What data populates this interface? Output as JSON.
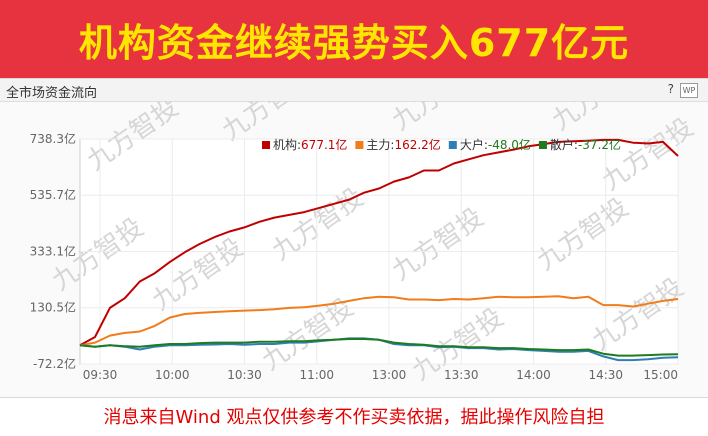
{
  "banner": {
    "title": "机构资金继续强势买入677亿元"
  },
  "panel": {
    "title": "全市场资金流向",
    "help_icon": "?",
    "wp_icon": "WP"
  },
  "watermark": "九方智投",
  "footer": {
    "disclaimer": "消息来自Wind 观点仅供参考不作买卖依据，据此操作风险自担"
  },
  "chart_data": {
    "type": "line",
    "y_ticks": [
      "738.3亿",
      "535.7亿",
      "333.1亿",
      "130.5亿",
      "-72.2亿"
    ],
    "y_tick_values": [
      738.3,
      535.7,
      333.1,
      130.5,
      -72.2
    ],
    "ylim": [
      -72.2,
      738.3
    ],
    "x_ticks": [
      "09:30",
      "10:00",
      "10:30",
      "11:00",
      "13:00",
      "13:30",
      "14:00",
      "14:30",
      "15:00"
    ],
    "grid": true,
    "legend_position": "top-right",
    "series": [
      {
        "name": "机构",
        "legend_value": "677.1亿",
        "color": "#c00000",
        "values": [
          -5,
          25,
          130,
          165,
          225,
          255,
          295,
          330,
          360,
          385,
          405,
          420,
          440,
          455,
          465,
          475,
          490,
          505,
          520,
          545,
          560,
          585,
          600,
          625,
          625,
          650,
          665,
          680,
          690,
          700,
          712,
          720,
          728,
          730,
          732,
          735,
          735,
          725,
          722,
          728,
          677
        ]
      },
      {
        "name": "主力",
        "legend_value": "162.2亿",
        "color": "#f07c1c",
        "values": [
          -5,
          5,
          30,
          40,
          45,
          65,
          95,
          108,
          112,
          115,
          118,
          120,
          122,
          125,
          130,
          132,
          138,
          145,
          155,
          165,
          170,
          168,
          160,
          160,
          158,
          162,
          160,
          165,
          170,
          168,
          168,
          170,
          172,
          165,
          170,
          140,
          140,
          135,
          145,
          155,
          162
        ]
      },
      {
        "name": "大户",
        "legend_value": "-48.0亿",
        "color": "#2e7eb8",
        "values": [
          -5,
          -10,
          -5,
          -10,
          -20,
          -10,
          -5,
          -5,
          -3,
          -2,
          0,
          -3,
          0,
          0,
          5,
          5,
          10,
          15,
          20,
          20,
          15,
          0,
          -5,
          -5,
          -12,
          -10,
          -15,
          -15,
          -20,
          -18,
          -22,
          -25,
          -28,
          -28,
          -25,
          -45,
          -58,
          -58,
          -55,
          -50,
          -48
        ]
      },
      {
        "name": "散户",
        "legend_value": "-37.2亿",
        "color": "#1e7b1e",
        "values": [
          -5,
          -10,
          -5,
          -8,
          -10,
          -5,
          0,
          0,
          3,
          5,
          5,
          5,
          8,
          8,
          10,
          10,
          13,
          15,
          18,
          18,
          15,
          5,
          0,
          -3,
          -8,
          -8,
          -12,
          -12,
          -15,
          -15,
          -18,
          -20,
          -22,
          -22,
          -20,
          -35,
          -42,
          -42,
          -40,
          -38,
          -37
        ]
      }
    ]
  }
}
